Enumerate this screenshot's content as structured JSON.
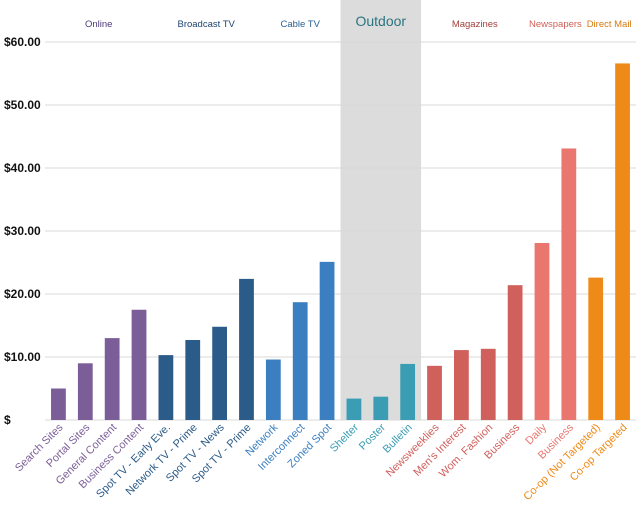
{
  "chart_data": {
    "type": "bar",
    "title": "",
    "xlabel": "",
    "ylabel": "",
    "ylim": [
      0,
      60
    ],
    "yticks": [
      {
        "value": 0,
        "label": "$"
      },
      {
        "value": 10,
        "label": "$10.00"
      },
      {
        "value": 20,
        "label": "$20.00"
      },
      {
        "value": 30,
        "label": "$30.00"
      },
      {
        "value": 40,
        "label": "$40.00"
      },
      {
        "value": 50,
        "label": "$50.00"
      },
      {
        "value": 60,
        "label": "$60.00"
      }
    ],
    "grid": true,
    "highlight_group": "Outdoor",
    "highlight_color": "#dcdcdc",
    "groups": [
      {
        "name": "Online",
        "color": "#7b5e98",
        "label_color": "#4d3a7a",
        "categories": [
          "Search Sites",
          "Portal Sites",
          "General Content",
          "Business Content"
        ],
        "values": [
          5.0,
          9.0,
          13.0,
          17.5
        ]
      },
      {
        "name": "Broadcast TV",
        "color": "#2b5b88",
        "label_color": "#1f4470",
        "categories": [
          "Spot TV - Early Eve.",
          "Network TV - Prime",
          "Spot TV - News",
          "Spot TV - Prime"
        ],
        "values": [
          10.3,
          12.7,
          14.8,
          22.4
        ]
      },
      {
        "name": "Cable TV",
        "color": "#3b7fc0",
        "label_color": "#2a5f8f",
        "categories": [
          "Network",
          "Interconnect",
          "Zoned Spot"
        ],
        "values": [
          9.6,
          18.7,
          25.1
        ]
      },
      {
        "name": "Outdoor",
        "color": "#3a9db3",
        "label_color": "#2a7580",
        "categories": [
          "Shelter",
          "Poster",
          "Bulletin"
        ],
        "values": [
          3.4,
          3.7,
          8.9
        ]
      },
      {
        "name": "Magazines",
        "color": "#d0605c",
        "label_color": "#a2403c",
        "categories": [
          "Newsweeklies",
          "Men's Interest",
          "Wom. Fashion",
          "Business"
        ],
        "values": [
          8.6,
          11.1,
          11.3,
          21.4
        ]
      },
      {
        "name": "Newspapers",
        "color": "#ea7670",
        "label_color": "#d06058",
        "categories": [
          "Daily",
          "Business"
        ],
        "values": [
          28.1,
          43.1
        ]
      },
      {
        "name": "Direct Mail",
        "color": "#ee8a18",
        "label_color": "#d67a10",
        "categories": [
          "Co-op (Not Targeted)",
          "Co-op Targeted"
        ],
        "values": [
          22.6,
          56.6
        ]
      }
    ]
  }
}
